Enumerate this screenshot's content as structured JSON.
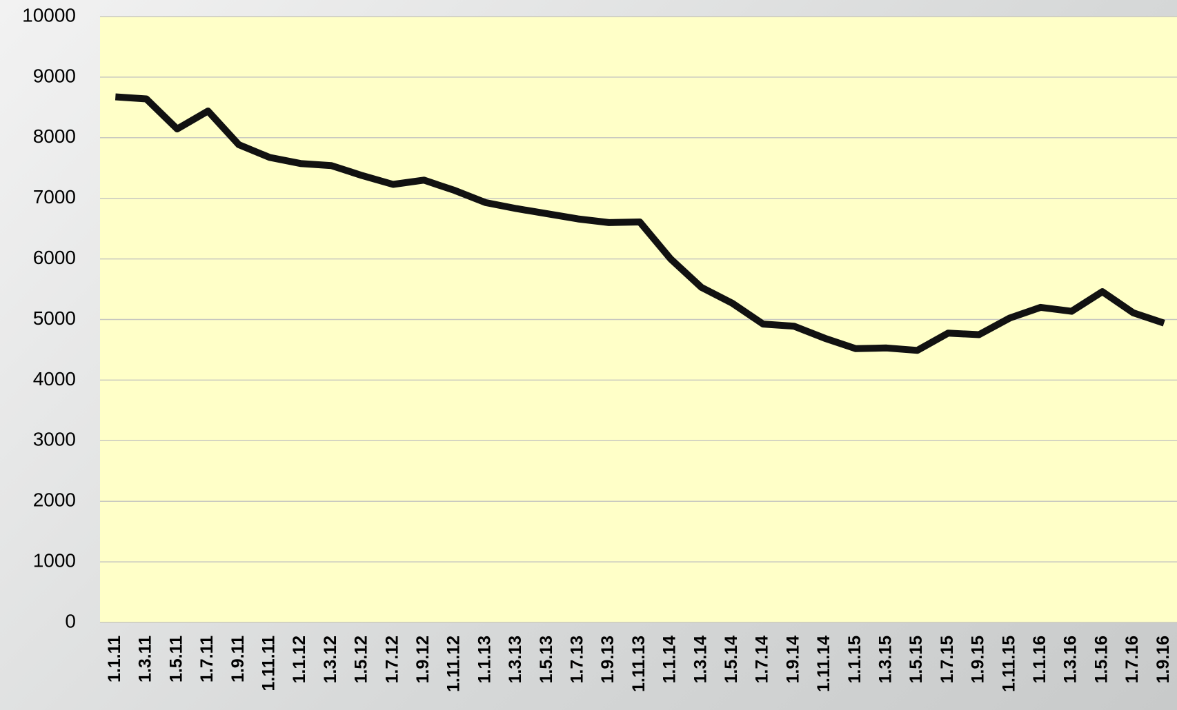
{
  "chart_data": {
    "type": "line",
    "categories": [
      "1.1.11",
      "1.3.11",
      "1.5.11",
      "1.7.11",
      "1.9.11",
      "1.11.11",
      "1.1.12",
      "1.3.12",
      "1.5.12",
      "1.7.12",
      "1.9.12",
      "1.11.12",
      "1.1.13",
      "1.3.13",
      "1.5.13",
      "1.7.13",
      "1.9.13",
      "1.11.13",
      "1.1.14",
      "1.3.14",
      "1.5.14",
      "1.7.14",
      "1.9.14",
      "1.11.14",
      "1.1.15",
      "1.3.15",
      "1.5.15",
      "1.7.15",
      "1.9.15",
      "1.11.15",
      "1.1.16",
      "1.3.16",
      "1.5.16",
      "1.7.16",
      "1.9.16"
    ],
    "values": [
      8675,
      8640,
      8145,
      8440,
      7885,
      7675,
      7575,
      7540,
      7375,
      7230,
      7300,
      7130,
      6930,
      6830,
      6745,
      6660,
      6600,
      6610,
      6000,
      5530,
      5270,
      4925,
      4890,
      4690,
      4520,
      4530,
      4490,
      4775,
      4750,
      5025,
      5200,
      5135,
      5460,
      5110,
      4940
    ],
    "color": "#111111",
    "ylim": [
      0,
      10000
    ],
    "yticks": [
      0,
      1000,
      2000,
      3000,
      4000,
      5000,
      6000,
      7000,
      8000,
      9000,
      10000
    ],
    "grid": true
  }
}
